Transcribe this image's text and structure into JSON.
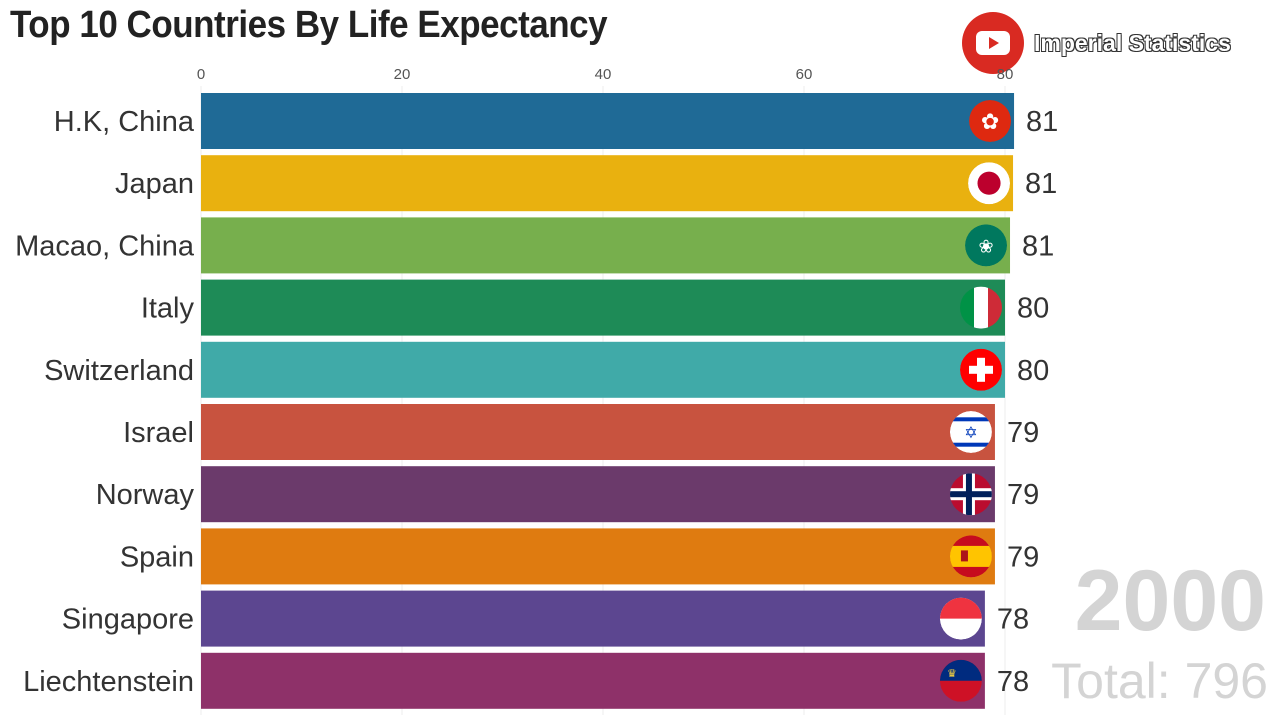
{
  "chart_data": {
    "type": "bar",
    "orientation": "horizontal",
    "title": "Top 10 Countries By Life Expectancy",
    "categories": [
      "H.K, China",
      "Japan",
      "Macao, China",
      "Italy",
      "Switzerland",
      "Israel",
      "Norway",
      "Spain",
      "Singapore",
      "Liechtenstein"
    ],
    "values": [
      80.9,
      80.8,
      80.5,
      80.0,
      80.0,
      79.0,
      79.0,
      79.0,
      78.0,
      78.0
    ],
    "value_labels": [
      "81",
      "81",
      "81",
      "80",
      "80",
      "79",
      "79",
      "79",
      "78",
      "78"
    ],
    "colors": [
      "#1f6a96",
      "#e9b10f",
      "#77af4d",
      "#1e8b57",
      "#40aaa8",
      "#c8533f",
      "#6b3a6b",
      "#df7b10",
      "#5c4690",
      "#8e3169"
    ],
    "flags": [
      "hong-kong-flag",
      "japan-flag",
      "macao-flag",
      "italy-flag",
      "switzerland-flag",
      "israel-flag",
      "norway-flag",
      "spain-flag",
      "singapore-flag",
      "liechtenstein-flag"
    ],
    "xticks": [
      "0",
      "20",
      "40",
      "60",
      "80"
    ],
    "xlim": [
      0,
      80
    ],
    "grid": true,
    "legend": "none"
  },
  "year": "2000",
  "total": "Total: 796",
  "brand": {
    "name": "Imperial Statistics",
    "color": "#d92a22"
  }
}
